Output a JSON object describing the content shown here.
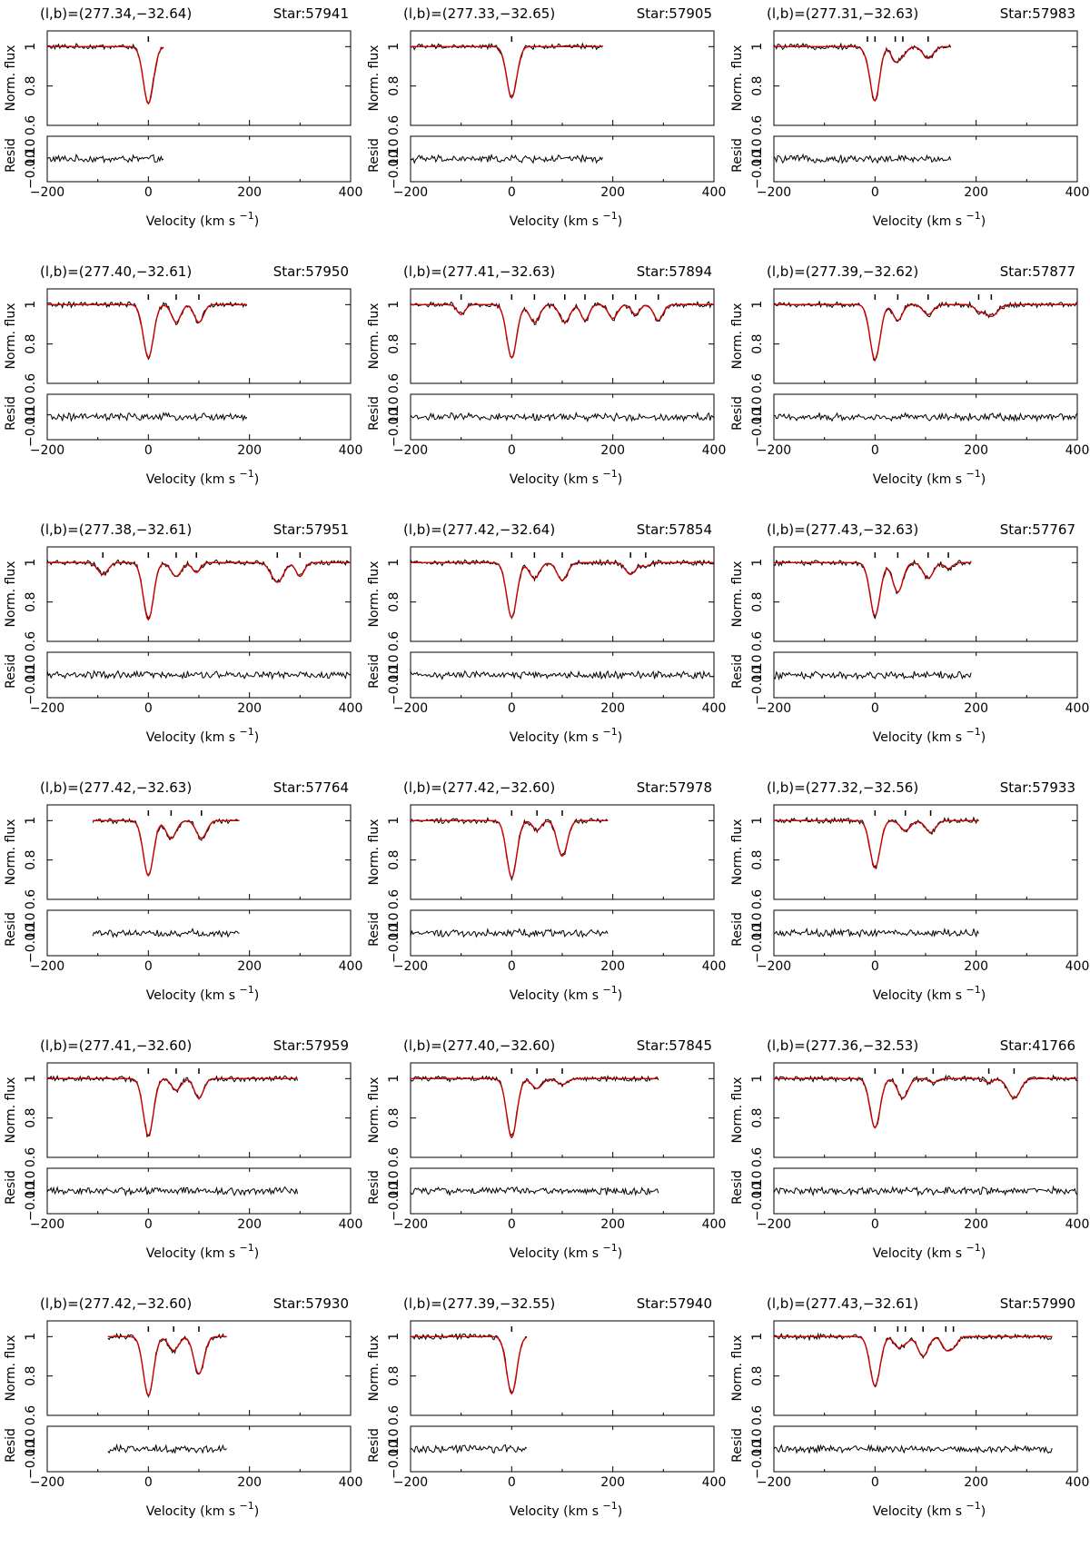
{
  "chart_data": {
    "type": "line",
    "layout": {
      "rows": 6,
      "cols": 3
    },
    "xlabel": "Velocity (km s",
    "xlabel_exp": "−1",
    "xlabel_close": ")",
    "ylabel_top": "Norm. flux",
    "ylabel_bottom": "Resid",
    "xlim": [
      -200,
      400
    ],
    "ylim_top": [
      0.6,
      1.08
    ],
    "ylim_bottom": [
      -0.1,
      0.1
    ],
    "xticks": [
      "−200",
      "0",
      "200",
      "400"
    ],
    "yticks_top": [
      "0.6",
      "0.8",
      "1"
    ],
    "yticks_bottom": [
      "−0.10",
      "0.10"
    ],
    "series_colors": {
      "data": "#000000",
      "model": "#cc0000"
    },
    "panels": [
      {
        "coords": "(l,b)=(277.34,−32.64)",
        "star": "Star:57941",
        "xrange": [
          -200,
          30
        ],
        "components": [
          {
            "v": 0,
            "d": 0.29,
            "w": 10
          }
        ]
      },
      {
        "coords": "(l,b)=(277.33,−32.65)",
        "star": "Star:57905",
        "xrange": [
          -200,
          180
        ],
        "components": [
          {
            "v": 0,
            "d": 0.26,
            "w": 10
          }
        ]
      },
      {
        "coords": "(l,b)=(277.31,−32.63)",
        "star": "Star:57983",
        "xrange": [
          -200,
          150
        ],
        "components": [
          {
            "v": -15,
            "d": 0.03,
            "w": 8
          },
          {
            "v": 0,
            "d": 0.27,
            "w": 9
          },
          {
            "v": 40,
            "d": 0.07,
            "w": 8
          },
          {
            "v": 55,
            "d": 0.04,
            "w": 8
          },
          {
            "v": 105,
            "d": 0.06,
            "w": 10
          }
        ]
      },
      {
        "coords": "(l,b)=(277.40,−32.61)",
        "star": "Star:57950",
        "xrange": [
          -200,
          195
        ],
        "components": [
          {
            "v": 0,
            "d": 0.27,
            "w": 10
          },
          {
            "v": 55,
            "d": 0.09,
            "w": 9
          },
          {
            "v": 100,
            "d": 0.09,
            "w": 9
          }
        ]
      },
      {
        "coords": "(l,b)=(277.41,−32.63)",
        "star": "Star:57894",
        "xrange": [
          -200,
          400
        ],
        "components": [
          {
            "v": -100,
            "d": 0.05,
            "w": 8
          },
          {
            "v": 0,
            "d": 0.27,
            "w": 10
          },
          {
            "v": 45,
            "d": 0.09,
            "w": 10
          },
          {
            "v": 105,
            "d": 0.09,
            "w": 10
          },
          {
            "v": 145,
            "d": 0.08,
            "w": 8
          },
          {
            "v": 200,
            "d": 0.07,
            "w": 9
          },
          {
            "v": 245,
            "d": 0.05,
            "w": 8
          },
          {
            "v": 290,
            "d": 0.08,
            "w": 9
          }
        ]
      },
      {
        "coords": "(l,b)=(277.39,−32.62)",
        "star": "Star:57877",
        "xrange": [
          -200,
          400
        ],
        "components": [
          {
            "v": 0,
            "d": 0.28,
            "w": 10
          },
          {
            "v": 45,
            "d": 0.08,
            "w": 9
          },
          {
            "v": 105,
            "d": 0.05,
            "w": 10
          },
          {
            "v": 205,
            "d": 0.03,
            "w": 8
          },
          {
            "v": 230,
            "d": 0.06,
            "w": 12
          }
        ]
      },
      {
        "coords": "(l,b)=(277.38,−32.61)",
        "star": "Star:57951",
        "xrange": [
          -200,
          400
        ],
        "components": [
          {
            "v": -90,
            "d": 0.06,
            "w": 10
          },
          {
            "v": 0,
            "d": 0.29,
            "w": 10
          },
          {
            "v": 55,
            "d": 0.07,
            "w": 10
          },
          {
            "v": 95,
            "d": 0.05,
            "w": 8
          },
          {
            "v": 255,
            "d": 0.1,
            "w": 12
          },
          {
            "v": 300,
            "d": 0.07,
            "w": 8
          }
        ]
      },
      {
        "coords": "(l,b)=(277.42,−32.64)",
        "star": "Star:57854",
        "xrange": [
          -200,
          400
        ],
        "components": [
          {
            "v": 0,
            "d": 0.28,
            "w": 10
          },
          {
            "v": 45,
            "d": 0.08,
            "w": 10
          },
          {
            "v": 100,
            "d": 0.09,
            "w": 10
          },
          {
            "v": 235,
            "d": 0.06,
            "w": 10
          },
          {
            "v": 265,
            "d": 0.02,
            "w": 8
          }
        ]
      },
      {
        "coords": "(l,b)=(277.43,−32.63)",
        "star": "Star:57767",
        "xrange": [
          -200,
          190
        ],
        "components": [
          {
            "v": 0,
            "d": 0.27,
            "w": 10
          },
          {
            "v": 45,
            "d": 0.15,
            "w": 10
          },
          {
            "v": 105,
            "d": 0.08,
            "w": 10
          },
          {
            "v": 145,
            "d": 0.03,
            "w": 8
          }
        ]
      },
      {
        "coords": "(l,b)=(277.42,−32.63)",
        "star": "Star:57764",
        "xrange": [
          -110,
          180
        ],
        "components": [
          {
            "v": 0,
            "d": 0.28,
            "w": 10
          },
          {
            "v": 45,
            "d": 0.09,
            "w": 10
          },
          {
            "v": 105,
            "d": 0.09,
            "w": 10
          }
        ]
      },
      {
        "coords": "(l,b)=(277.42,−32.60)",
        "star": "Star:57978",
        "xrange": [
          -200,
          190
        ],
        "components": [
          {
            "v": 0,
            "d": 0.29,
            "w": 10
          },
          {
            "v": 50,
            "d": 0.05,
            "w": 8
          },
          {
            "v": 100,
            "d": 0.18,
            "w": 10
          }
        ]
      },
      {
        "coords": "(l,b)=(277.32,−32.56)",
        "star": "Star:57933",
        "xrange": [
          -200,
          205
        ],
        "components": [
          {
            "v": 0,
            "d": 0.24,
            "w": 10
          },
          {
            "v": 60,
            "d": 0.05,
            "w": 10
          },
          {
            "v": 110,
            "d": 0.06,
            "w": 10
          }
        ]
      },
      {
        "coords": "(l,b)=(277.41,−32.60)",
        "star": "Star:57959",
        "xrange": [
          -200,
          295
        ],
        "components": [
          {
            "v": 0,
            "d": 0.29,
            "w": 10
          },
          {
            "v": 55,
            "d": 0.06,
            "w": 9
          },
          {
            "v": 100,
            "d": 0.1,
            "w": 9
          }
        ]
      },
      {
        "coords": "(l,b)=(277.40,−32.60)",
        "star": "Star:57845",
        "xrange": [
          -200,
          290
        ],
        "components": [
          {
            "v": 0,
            "d": 0.3,
            "w": 10
          },
          {
            "v": 50,
            "d": 0.05,
            "w": 10
          },
          {
            "v": 100,
            "d": 0.03,
            "w": 10
          }
        ]
      },
      {
        "coords": "(l,b)=(277.36,−32.53)",
        "star": "Star:41766",
        "xrange": [
          -200,
          400
        ],
        "components": [
          {
            "v": 0,
            "d": 0.25,
            "w": 10
          },
          {
            "v": 55,
            "d": 0.1,
            "w": 10
          },
          {
            "v": 115,
            "d": 0.02,
            "w": 8
          },
          {
            "v": 225,
            "d": 0.02,
            "w": 8
          },
          {
            "v": 275,
            "d": 0.1,
            "w": 12
          }
        ]
      },
      {
        "coords": "(l,b)=(277.42,−32.60)",
        "star": "Star:57930",
        "xrange": [
          -80,
          155
        ],
        "components": [
          {
            "v": 0,
            "d": 0.3,
            "w": 10
          },
          {
            "v": 50,
            "d": 0.07,
            "w": 10
          },
          {
            "v": 100,
            "d": 0.19,
            "w": 10
          }
        ]
      },
      {
        "coords": "(l,b)=(277.39,−32.55)",
        "star": "Star:57940",
        "xrange": [
          -200,
          30
        ],
        "components": [
          {
            "v": 0,
            "d": 0.29,
            "w": 10
          }
        ]
      },
      {
        "coords": "(l,b)=(277.43,−32.61)",
        "star": "Star:57990",
        "xrange": [
          -200,
          350
        ],
        "components": [
          {
            "v": 0,
            "d": 0.25,
            "w": 10
          },
          {
            "v": 45,
            "d": 0.05,
            "w": 8
          },
          {
            "v": 60,
            "d": 0.03,
            "w": 8
          },
          {
            "v": 95,
            "d": 0.1,
            "w": 10
          },
          {
            "v": 140,
            "d": 0.06,
            "w": 8
          },
          {
            "v": 155,
            "d": 0.05,
            "w": 8
          }
        ]
      }
    ]
  }
}
